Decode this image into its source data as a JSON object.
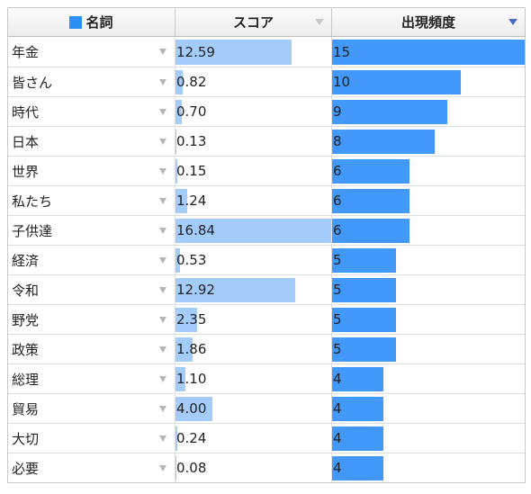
{
  "header": {
    "noun_label": "名詞",
    "score_label": "スコア",
    "freq_label": "出現頻度",
    "accent_color": "#2d8ff5",
    "sort_column": "出現頻度",
    "sort_direction": "descending"
  },
  "scale": {
    "score_max": 16.84,
    "freq_max": 15
  },
  "rows": [
    {
      "noun": "年金",
      "score": "12.59",
      "freq": "15"
    },
    {
      "noun": "皆さん",
      "score": "0.82",
      "freq": "10"
    },
    {
      "noun": "時代",
      "score": "0.70",
      "freq": "9"
    },
    {
      "noun": "日本",
      "score": "0.13",
      "freq": "8"
    },
    {
      "noun": "世界",
      "score": "0.15",
      "freq": "6"
    },
    {
      "noun": "私たち",
      "score": "1.24",
      "freq": "6"
    },
    {
      "noun": "子供達",
      "score": "16.84",
      "freq": "6"
    },
    {
      "noun": "経済",
      "score": "0.53",
      "freq": "5"
    },
    {
      "noun": "令和",
      "score": "12.92",
      "freq": "5"
    },
    {
      "noun": "野党",
      "score": "2.35",
      "freq": "5"
    },
    {
      "noun": "政策",
      "score": "1.86",
      "freq": "5"
    },
    {
      "noun": "総理",
      "score": "1.10",
      "freq": "4"
    },
    {
      "noun": "貿易",
      "score": "4.00",
      "freq": "4"
    },
    {
      "noun": "大切",
      "score": "0.24",
      "freq": "4"
    },
    {
      "noun": "必要",
      "score": "0.08",
      "freq": "4"
    }
  ]
}
